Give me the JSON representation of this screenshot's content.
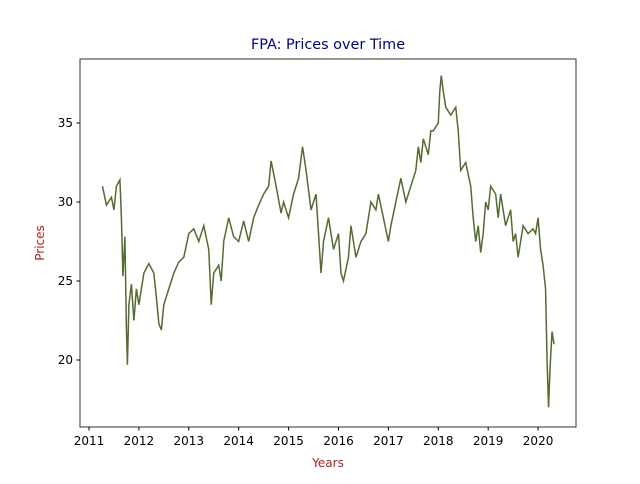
{
  "chart_data": {
    "type": "line",
    "title": "FPA: Prices over Time",
    "xlabel": "Years",
    "ylabel": "Prices",
    "color": "#556b2f",
    "title_color": "#00008b",
    "label_color": "#b22222",
    "x": [
      2011.27,
      2011.35,
      2011.45,
      2011.5,
      2011.55,
      2011.62,
      2011.65,
      2011.68,
      2011.72,
      2011.75,
      2011.77,
      2011.8,
      2011.85,
      2011.9,
      2011.95,
      2012.0,
      2012.1,
      2012.2,
      2012.3,
      2012.35,
      2012.4,
      2012.45,
      2012.5,
      2012.6,
      2012.7,
      2012.8,
      2012.9,
      2013.0,
      2013.1,
      2013.2,
      2013.3,
      2013.4,
      2013.45,
      2013.5,
      2013.6,
      2013.65,
      2013.7,
      2013.8,
      2013.9,
      2014.0,
      2014.1,
      2014.2,
      2014.3,
      2014.4,
      2014.5,
      2014.6,
      2014.65,
      2014.75,
      2014.85,
      2014.9,
      2015.0,
      2015.1,
      2015.2,
      2015.28,
      2015.35,
      2015.45,
      2015.55,
      2015.6,
      2015.65,
      2015.7,
      2015.8,
      2015.9,
      2016.0,
      2016.05,
      2016.1,
      2016.2,
      2016.25,
      2016.35,
      2016.45,
      2016.55,
      2016.65,
      2016.75,
      2016.8,
      2016.9,
      2017.0,
      2017.05,
      2017.15,
      2017.25,
      2017.35,
      2017.45,
      2017.55,
      2017.6,
      2017.65,
      2017.7,
      2017.8,
      2017.85,
      2017.9,
      2018.0,
      2018.03,
      2018.06,
      2018.1,
      2018.15,
      2018.25,
      2018.35,
      2018.4,
      2018.45,
      2018.55,
      2018.65,
      2018.7,
      2018.75,
      2018.8,
      2018.85,
      2018.9,
      2018.95,
      2019.0,
      2019.05,
      2019.15,
      2019.2,
      2019.25,
      2019.35,
      2019.45,
      2019.5,
      2019.55,
      2019.6,
      2019.65,
      2019.7,
      2019.8,
      2019.9,
      2019.95,
      2020.0,
      2020.05,
      2020.1,
      2020.15,
      2020.18,
      2020.21,
      2020.24,
      2020.28,
      2020.32
    ],
    "values": [
      31.0,
      29.8,
      30.3,
      29.5,
      31.0,
      31.4,
      29.0,
      25.3,
      27.8,
      22.0,
      19.7,
      23.5,
      24.8,
      22.5,
      24.5,
      23.5,
      25.5,
      26.1,
      25.5,
      24.0,
      22.3,
      21.9,
      23.5,
      24.5,
      25.5,
      26.2,
      26.5,
      28.0,
      28.3,
      27.5,
      28.5,
      27.0,
      23.5,
      25.5,
      26.0,
      25.0,
      27.5,
      29.0,
      27.8,
      27.5,
      28.8,
      27.5,
      29.0,
      29.8,
      30.5,
      31.0,
      32.6,
      31.0,
      29.3,
      30.0,
      29.0,
      30.5,
      31.5,
      33.5,
      32.0,
      29.5,
      30.5,
      28.0,
      25.5,
      27.5,
      29.0,
      27.0,
      28.0,
      25.5,
      25.0,
      26.5,
      28.5,
      26.5,
      27.5,
      28.0,
      30.0,
      29.5,
      30.5,
      29.0,
      27.5,
      28.5,
      30.0,
      31.5,
      30.0,
      31.0,
      32.0,
      33.5,
      32.5,
      34.0,
      33.0,
      34.5,
      34.5,
      35.0,
      37.0,
      38.0,
      37.0,
      36.0,
      35.5,
      36.0,
      34.5,
      32.0,
      32.5,
      31.0,
      29.0,
      27.5,
      28.5,
      26.8,
      28.0,
      30.0,
      29.5,
      31.0,
      30.5,
      29.0,
      30.5,
      28.5,
      29.5,
      27.5,
      28.0,
      26.5,
      27.5,
      28.5,
      28.0,
      28.3,
      28.0,
      29.0,
      27.0,
      26.0,
      24.5,
      20.0,
      17.0,
      19.5,
      21.8,
      21.0
    ],
    "xlim": [
      2010.82,
      2020.76
    ],
    "xticks": [
      2011,
      2012,
      2013,
      2014,
      2015,
      2016,
      2017,
      2018,
      2019,
      2020
    ],
    "ylim": [
      15.76,
      39.05
    ],
    "yticks": [
      20,
      25,
      30,
      35
    ]
  }
}
